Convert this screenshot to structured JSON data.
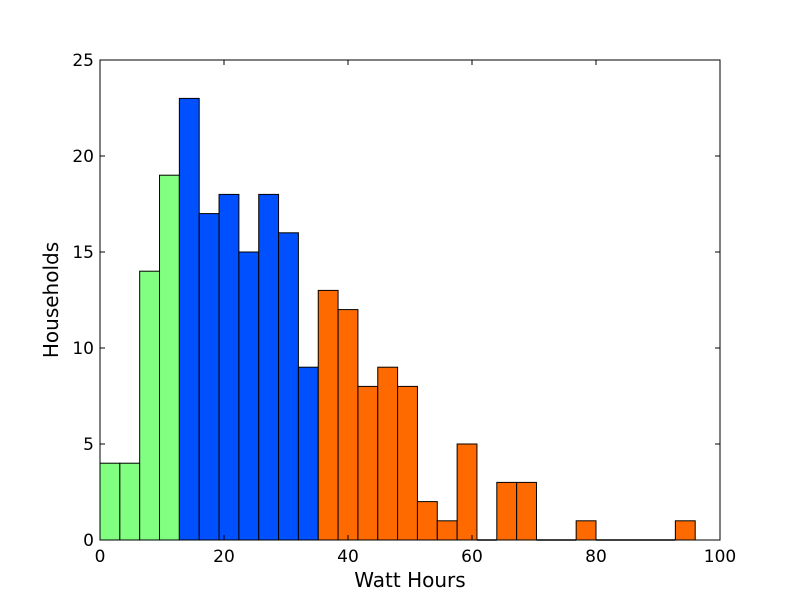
{
  "chart_data": {
    "type": "bar",
    "title": "",
    "xlabel": "Watt Hours",
    "ylabel": "Households",
    "xlim": [
      0,
      100
    ],
    "ylim": [
      0,
      25
    ],
    "xticks": [
      0,
      20,
      40,
      60,
      80,
      100
    ],
    "yticks": [
      0,
      5,
      10,
      15,
      20,
      25
    ],
    "grid": false,
    "colors": {
      "low": "#80ff80",
      "mid": "#0050ff",
      "high": "#ff6a00",
      "edge": "#000000"
    },
    "bins": [
      {
        "x0": 0.0,
        "x1": 3.2,
        "count": 4,
        "group": "low"
      },
      {
        "x0": 3.2,
        "x1": 6.4,
        "count": 4,
        "group": "low"
      },
      {
        "x0": 6.4,
        "x1": 9.6,
        "count": 14,
        "group": "low"
      },
      {
        "x0": 9.6,
        "x1": 12.8,
        "count": 19,
        "group": "low"
      },
      {
        "x0": 12.8,
        "x1": 16.0,
        "count": 23,
        "group": "mid"
      },
      {
        "x0": 16.0,
        "x1": 19.2,
        "count": 17,
        "group": "mid"
      },
      {
        "x0": 19.2,
        "x1": 22.4,
        "count": 18,
        "group": "mid"
      },
      {
        "x0": 22.4,
        "x1": 25.6,
        "count": 15,
        "group": "mid"
      },
      {
        "x0": 25.6,
        "x1": 28.8,
        "count": 18,
        "group": "mid"
      },
      {
        "x0": 28.8,
        "x1": 32.0,
        "count": 16,
        "group": "mid"
      },
      {
        "x0": 32.0,
        "x1": 35.2,
        "count": 9,
        "group": "mid"
      },
      {
        "x0": 35.2,
        "x1": 38.4,
        "count": 13,
        "group": "high"
      },
      {
        "x0": 38.4,
        "x1": 41.6,
        "count": 12,
        "group": "high"
      },
      {
        "x0": 41.6,
        "x1": 44.8,
        "count": 8,
        "group": "high"
      },
      {
        "x0": 44.8,
        "x1": 48.0,
        "count": 9,
        "group": "high"
      },
      {
        "x0": 48.0,
        "x1": 51.2,
        "count": 8,
        "group": "high"
      },
      {
        "x0": 51.2,
        "x1": 54.4,
        "count": 2,
        "group": "high"
      },
      {
        "x0": 54.4,
        "x1": 57.6,
        "count": 1,
        "group": "high"
      },
      {
        "x0": 57.6,
        "x1": 60.8,
        "count": 5,
        "group": "high"
      },
      {
        "x0": 60.8,
        "x1": 64.0,
        "count": 0,
        "group": "high"
      },
      {
        "x0": 64.0,
        "x1": 67.2,
        "count": 3,
        "group": "high"
      },
      {
        "x0": 67.2,
        "x1": 70.4,
        "count": 3,
        "group": "high"
      },
      {
        "x0": 70.4,
        "x1": 73.6,
        "count": 0,
        "group": "high"
      },
      {
        "x0": 73.6,
        "x1": 76.8,
        "count": 0,
        "group": "high"
      },
      {
        "x0": 76.8,
        "x1": 80.0,
        "count": 1,
        "group": "high"
      },
      {
        "x0": 80.0,
        "x1": 83.2,
        "count": 0,
        "group": "high"
      },
      {
        "x0": 83.2,
        "x1": 86.4,
        "count": 0,
        "group": "high"
      },
      {
        "x0": 86.4,
        "x1": 89.6,
        "count": 0,
        "group": "high"
      },
      {
        "x0": 89.6,
        "x1": 92.8,
        "count": 0,
        "group": "high"
      },
      {
        "x0": 92.8,
        "x1": 96.0,
        "count": 1,
        "group": "high"
      }
    ]
  }
}
